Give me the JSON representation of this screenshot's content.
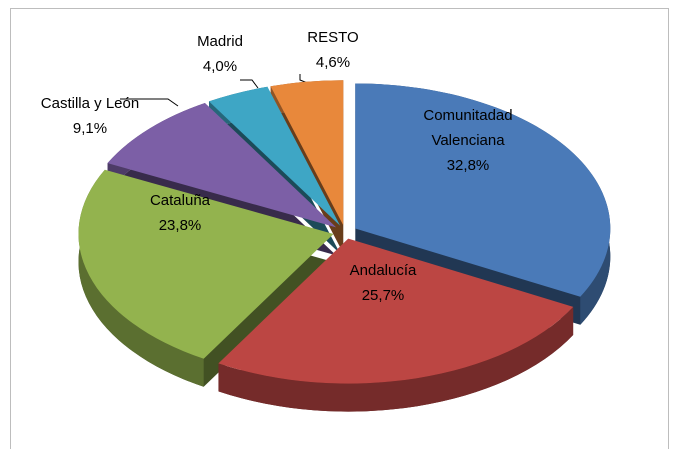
{
  "chart_data": {
    "type": "pie",
    "categories": [
      "Comunitadad Valenciana",
      "Andalucía",
      "Cataluña",
      "Castilla y León",
      "Madrid",
      "RESTO"
    ],
    "values": [
      32.8,
      25.7,
      23.8,
      9.1,
      4.0,
      4.6
    ],
    "value_labels": [
      "32,8%",
      "25,7%",
      "23,8%",
      "9,1%",
      "4,0%",
      "4,6%"
    ],
    "colors": [
      "#4a7ab8",
      "#bc4643",
      "#93b34e",
      "#7c5fa6",
      "#3ea6c5",
      "#e8883b"
    ]
  }
}
